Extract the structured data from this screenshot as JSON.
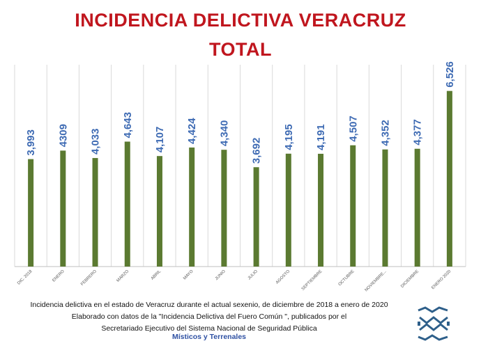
{
  "title_line1": "INCIDENCIA DELICTIVA VERACRUZ",
  "title_line2": "TOTAL",
  "footer": {
    "line1": "Incidencia delictiva en el estado de Veracruz durante el actual sexenio, de diciembre de 2018 a enero de 2020",
    "line2": "Elaborado con datos de la \"Incidencia Delictiva del Fuero Común \", publicados por el",
    "line3": "Secretariado Ejecutivo del Sistema Nacional de Seguridad Pública",
    "line4": "Místicos y Terrenales"
  },
  "logo_icon": "misticos-y-terrenales-logo-icon",
  "colors": {
    "bar": "#5b7a31",
    "label": "#3d6ab3",
    "title": "#c0161e",
    "grid": "#d9d9d9"
  },
  "chart_data": {
    "type": "bar",
    "categories": [
      "DIC. 2018",
      "ENERO",
      "FEBRERO",
      "MARZO",
      "ABRIL",
      "MAYO",
      "JUNIO",
      "JULIO",
      "AGOSTO",
      "SEPTIEMBRE",
      "OCTUBRE",
      "NOVIEMBRE...",
      "DICIEMBRE",
      "ENERO 2020"
    ],
    "values": [
      3993,
      4309,
      4033,
      4643,
      4107,
      4424,
      4340,
      3692,
      4195,
      4191,
      4507,
      4352,
      4377,
      6526
    ],
    "data_labels": [
      "3,993",
      "4309",
      "4,033",
      "4,643",
      "4,107",
      "4,424",
      "4,340",
      "3,692",
      "4,195",
      "4,191",
      "4,507",
      "4,352",
      "4,377",
      "6,526"
    ],
    "title": "INCIDENCIA DELICTIVA VERACRUZ TOTAL",
    "ylim": [
      0,
      7500
    ],
    "grid": "vertical"
  }
}
